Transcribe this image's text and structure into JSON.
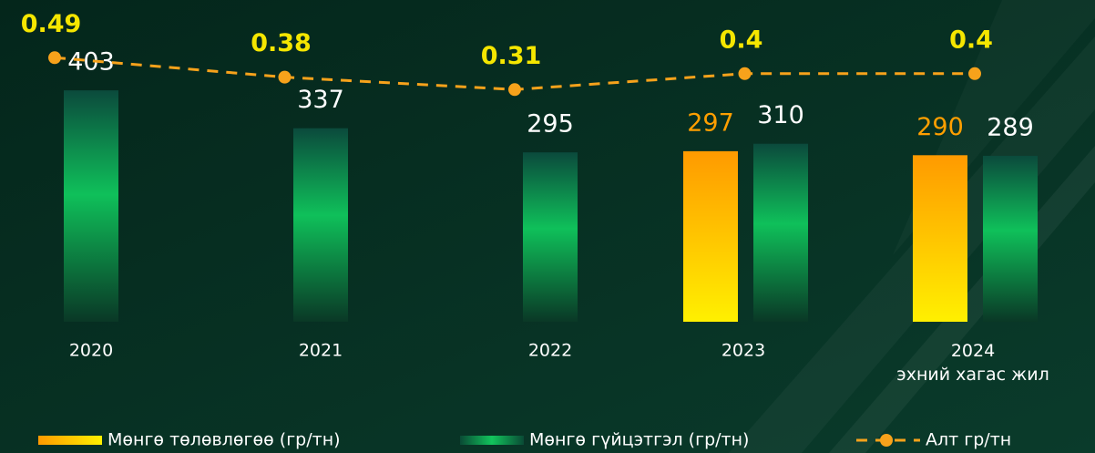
{
  "chart_data": {
    "type": "bar",
    "categories": [
      "2020",
      "2021",
      "2022",
      "2023",
      "2024\nэхний хагас жил"
    ],
    "series": [
      {
        "name": "Мөнгө төлөвлөгөө (гр/тн)",
        "color": "#ff9f00",
        "values": [
          null,
          null,
          null,
          297,
          290
        ]
      },
      {
        "name": "Мөнгө гүйцэтгэл (гр/тн)",
        "color": "#10b957",
        "values": [
          403,
          337,
          295,
          310,
          289
        ]
      },
      {
        "name": "Алт гр/тн",
        "type": "line",
        "axis": "y2",
        "color": "#f7a21b",
        "values": [
          0.49,
          0.38,
          0.31,
          0.4,
          0.4
        ]
      }
    ],
    "ylim": [
      0,
      500
    ],
    "y2lim": [
      -1,
      0.62
    ],
    "grid": false,
    "legend": "bottom"
  }
}
